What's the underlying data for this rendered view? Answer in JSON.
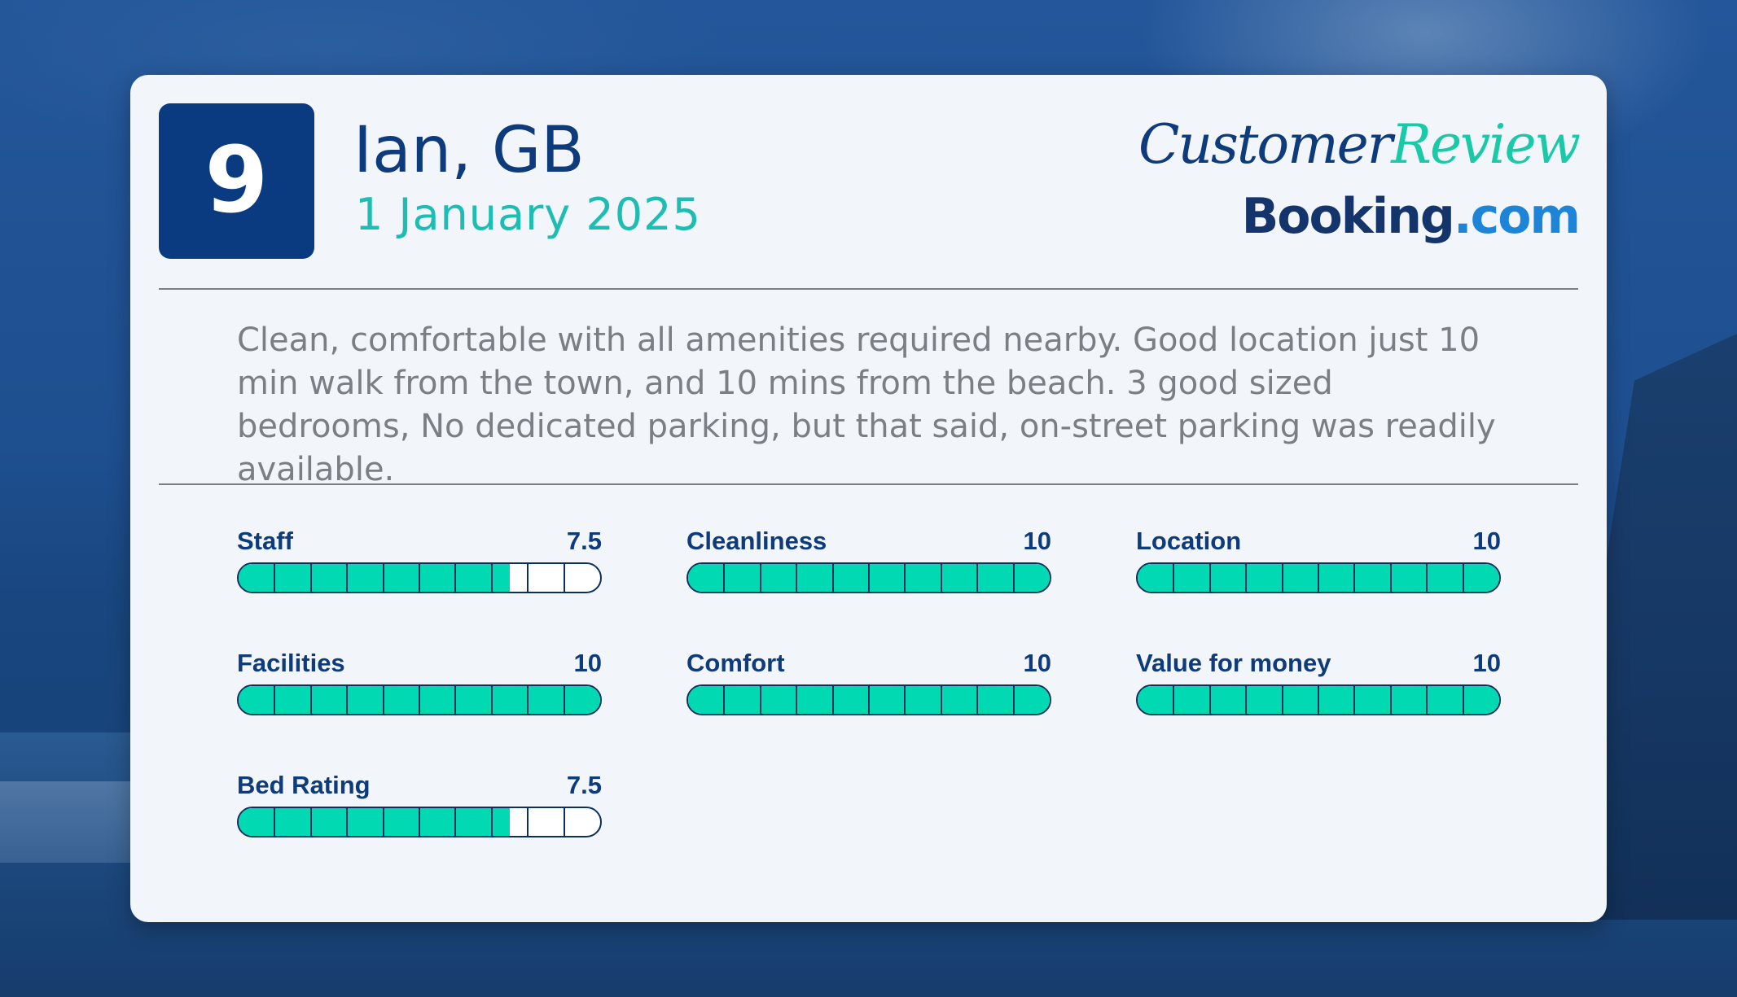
{
  "review": {
    "score": "9",
    "reviewer": "Ian, GB",
    "date": "1 January 2025",
    "text": "Clean, comfortable with all amenities required nearby. Good location just 10 min walk from the town, and 10 mins from the beach. 3 good sized bedrooms, No dedicated parking, but that said, on-street parking was readily available."
  },
  "brand": {
    "script_part1": "Customer",
    "script_part2": "Review",
    "logo_part1": "Booking",
    "logo_part2": ".com"
  },
  "colors": {
    "navy": "#0a3a80",
    "teal_text": "#1dbdb3",
    "bar_fill": "#00d9b2",
    "card": "#f2f5f9"
  },
  "ratings": [
    {
      "label": "Staff",
      "value": "7.5",
      "score": 7.5,
      "max": 10
    },
    {
      "label": "Cleanliness",
      "value": "10",
      "score": 10,
      "max": 10
    },
    {
      "label": "Location",
      "value": "10",
      "score": 10,
      "max": 10
    },
    {
      "label": "Facilities",
      "value": "10",
      "score": 10,
      "max": 10
    },
    {
      "label": "Comfort",
      "value": "10",
      "score": 10,
      "max": 10
    },
    {
      "label": "Value for money",
      "value": "10",
      "score": 10,
      "max": 10
    },
    {
      "label": "Bed Rating",
      "value": "7.5",
      "score": 7.5,
      "max": 10
    }
  ]
}
